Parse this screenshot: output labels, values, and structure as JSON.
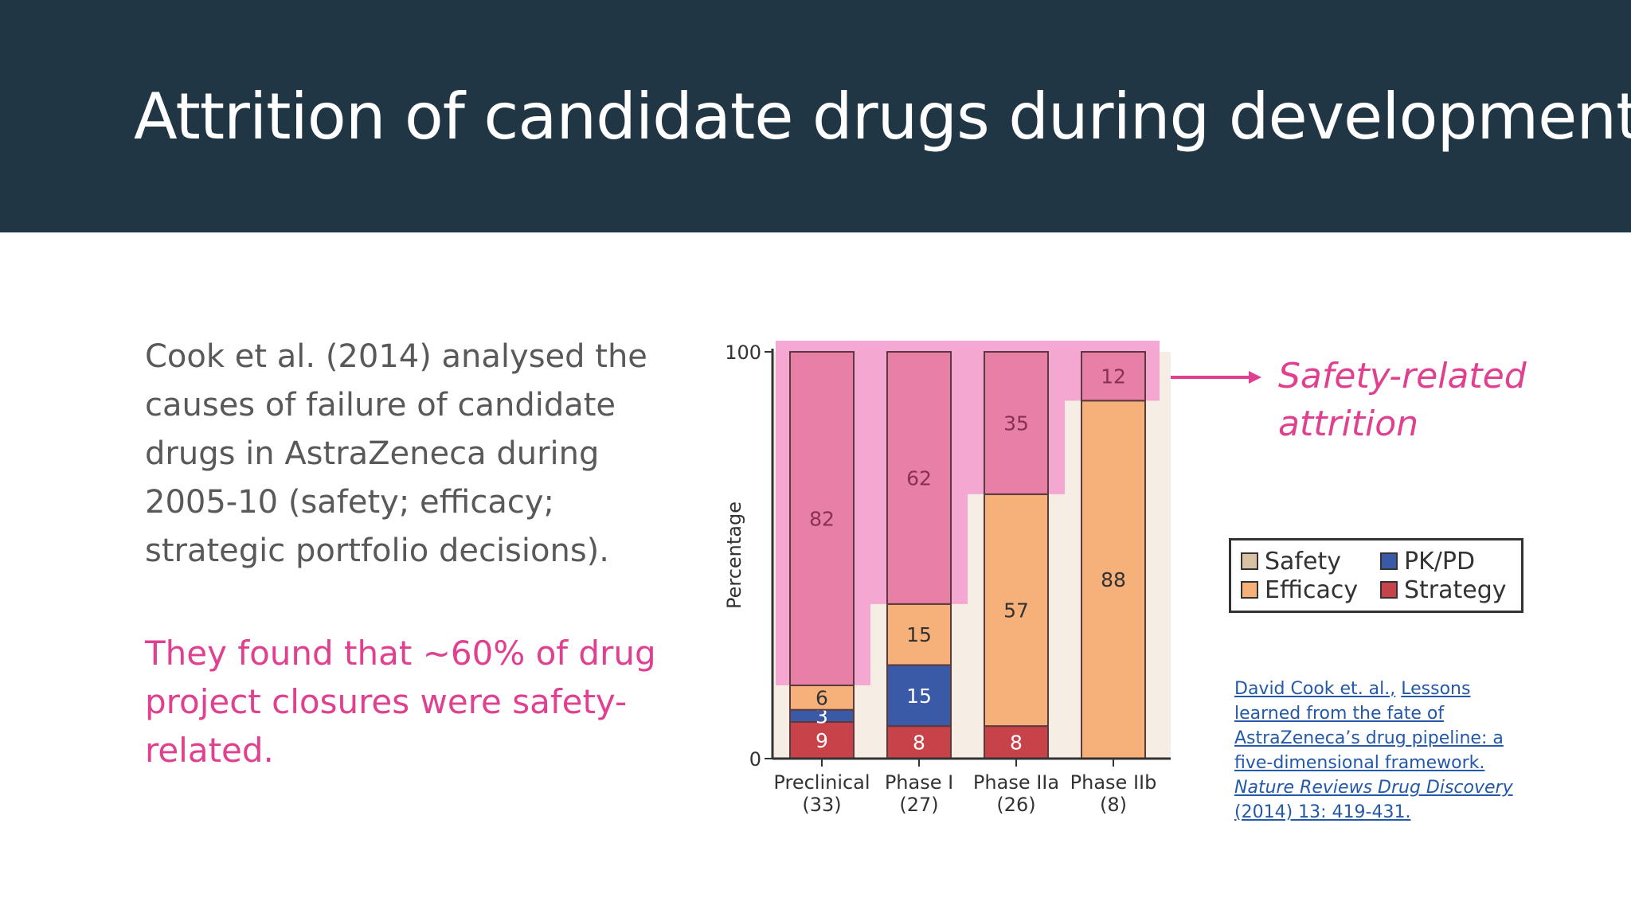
{
  "slide": {
    "title": "Attrition of candidate drugs during development",
    "body": "Cook et al. (2014) analysed the causes of failure of candidate drugs in AstraZeneca during 2005-10 (safety; efficacy; strategic portfolio decisions).",
    "highlight": "They found that ~60% of drug project closures were safety-related.",
    "annotation_line1": "Safety-related",
    "annotation_line2": "attrition",
    "citation": {
      "authors": "David Cook et. al.,",
      "title": "Lessons learned from the fate of AstraZeneca’s drug pipeline:  a five-dimensional framework.",
      "journal": "Nature Reviews Drug Discovery",
      "rest": "(2014) 13: 419-431."
    },
    "colors": {
      "header_bg": "#213644",
      "accent_pink": "#e0408f",
      "link_blue": "#2458a8"
    }
  },
  "chart_data": {
    "type": "bar",
    "stacked": true,
    "ylabel": "Percentage",
    "ylim": [
      0,
      100
    ],
    "yticks": [
      0,
      100
    ],
    "categories": [
      "Preclinical",
      "Phase I",
      "Phase IIa",
      "Phase IIb"
    ],
    "category_counts": [
      "(33)",
      "(27)",
      "(26)",
      "(8)"
    ],
    "series": [
      {
        "name": "Strategy",
        "color": "#c8424a",
        "values": [
          9,
          8,
          8,
          0
        ]
      },
      {
        "name": "PK/PD",
        "color": "#3a5aa8",
        "values": [
          3,
          15,
          0,
          0
        ]
      },
      {
        "name": "Efficacy",
        "color": "#f6b07a",
        "values": [
          6,
          15,
          57,
          88
        ]
      },
      {
        "name": "Safety",
        "color": "#e77fa6",
        "values": [
          82,
          62,
          35,
          12
        ]
      }
    ],
    "legend": [
      {
        "name": "Safety",
        "color": "#d9c3a4"
      },
      {
        "name": "PK/PD",
        "color": "#3a5aa8"
      },
      {
        "name": "Efficacy",
        "color": "#f6b07a"
      },
      {
        "name": "Strategy",
        "color": "#c8424a"
      }
    ],
    "legend_position": "right",
    "highlight_series": "Safety",
    "highlight_color": "#f49fce"
  }
}
